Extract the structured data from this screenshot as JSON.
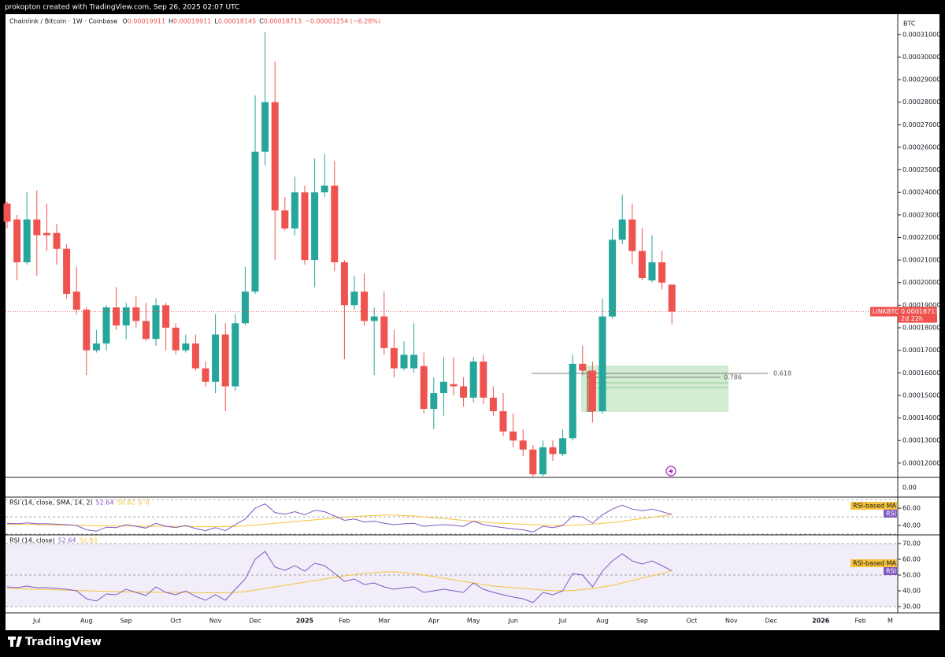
{
  "header": {
    "credit": "prokopton created with TradingView.com, Sep 26, 2025 02:07 UTC"
  },
  "footer": {
    "brand": "TradingView"
  },
  "chart_data": {
    "type": "candlestick",
    "title": "Chainlink / Bitcoin · 1W · Coinbase",
    "ohlc_letters": [
      "O",
      "H",
      "L",
      "C"
    ],
    "change": "−0.00001254 (−6.28%)",
    "y_unit": "BTC",
    "up_color": "#26a69a",
    "down_color": "#ef5350",
    "categories": [
      null,
      null,
      null,
      "Jul",
      null,
      null,
      null,
      null,
      "Aug",
      null,
      null,
      null,
      "Sep",
      null,
      null,
      null,
      null,
      "Oct",
      null,
      null,
      null,
      "Nov",
      null,
      null,
      null,
      "Dec",
      null,
      null,
      null,
      null,
      "2025",
      null,
      null,
      null,
      "Feb",
      null,
      null,
      null,
      "Mar",
      null,
      null,
      null,
      null,
      "Apr",
      null,
      null,
      null,
      "May",
      null,
      null,
      null,
      "Jun",
      null,
      null,
      null,
      null,
      "Jul",
      null,
      null,
      null,
      "Aug",
      null,
      null,
      null,
      "Sep",
      null,
      null,
      null,
      null,
      "Oct",
      null,
      null,
      null,
      "Nov",
      null,
      null,
      null,
      "Dec",
      null,
      null,
      null,
      null,
      "2026",
      null,
      null,
      null,
      "Feb",
      null,
      null,
      "M"
    ],
    "open": [
      0.000235,
      0.000228,
      0.000209,
      0.000228,
      0.000222,
      0.000222,
      0.000215,
      0.000196,
      0.000188,
      0.00017,
      0.000173,
      0.000189,
      0.000181,
      0.000189,
      0.000183,
      0.000175,
      0.00019,
      0.00018,
      0.00017,
      0.000173,
      0.000162,
      0.000156,
      0.000177,
      0.000154,
      0.000182,
      0.000196,
      0.000258,
      0.00028,
      0.000232,
      0.000224,
      0.00024,
      0.00021,
      0.00024,
      0.000243,
      0.000209,
      0.00019,
      0.000196,
      0.000183,
      0.000185,
      0.000171,
      0.000162,
      0.000162,
      0.000163,
      0.000144,
      0.000151,
      0.000155,
      0.000154,
      0.000149,
      0.000165,
      0.000149,
      0.000143,
      0.000134,
      0.00013,
      0.000126,
      0.000115,
      0.000127,
      0.000124,
      0.000131,
      0.000164,
      0.000161,
      0.000143,
      0.000185,
      0.000219,
      0.000228,
      0.000214,
      0.000201,
      0.000209,
      0.00019911,
      null,
      null,
      null,
      null,
      null,
      null,
      null,
      null,
      null,
      null,
      null,
      null,
      null,
      null,
      null,
      null,
      null,
      null,
      null,
      null,
      null,
      null
    ],
    "high": [
      0.000236,
      0.00023,
      0.00024,
      0.000241,
      0.000235,
      0.000226,
      0.000217,
      0.000207,
      0.000189,
      0.000179,
      0.00019,
      0.000198,
      0.000191,
      0.000194,
      0.000191,
      0.000193,
      0.000191,
      0.000182,
      0.000177,
      0.000177,
      0.000165,
      0.000186,
      0.000182,
      0.000186,
      0.000207,
      0.000283,
      0.000311,
      0.000298,
      0.000238,
      0.000247,
      0.000243,
      0.000255,
      0.000257,
      0.000254,
      0.00021,
      0.000203,
      0.000204,
      0.000189,
      0.000196,
      0.000179,
      0.000174,
      0.000182,
      0.000169,
      0.000158,
      0.000167,
      0.000167,
      0.000158,
      0.000167,
      0.000168,
      0.000154,
      0.000151,
      0.000142,
      0.000135,
      0.000128,
      0.00013,
      0.00013,
      0.000135,
      0.000168,
      0.000172,
      0.000165,
      0.000193,
      0.000224,
      0.000239,
      0.000235,
      0.000224,
      0.000221,
      0.000214,
      0.00019911,
      null,
      null,
      null,
      null,
      null,
      null,
      null,
      null,
      null,
      null,
      null,
      null,
      null,
      null,
      null,
      null,
      null,
      null,
      null,
      null,
      null,
      null
    ],
    "low": [
      0.000224,
      0.000201,
      0.000208,
      0.000203,
      0.000214,
      0.000208,
      0.000193,
      0.000186,
      0.000159,
      0.000169,
      0.00017,
      0.000179,
      0.000175,
      0.00018,
      0.000174,
      0.000172,
      0.00017,
      0.000168,
      0.000169,
      0.000161,
      0.000154,
      0.000151,
      0.000143,
      0.000152,
      0.000181,
      0.000195,
      0.000252,
      0.00021,
      0.000223,
      0.000221,
      0.000208,
      0.000198,
      0.000238,
      0.000205,
      0.000166,
      0.000188,
      0.000181,
      0.000159,
      0.000168,
      0.000158,
      0.000161,
      0.00016,
      0.000142,
      0.000135,
      0.000141,
      0.00015,
      0.000145,
      0.000147,
      0.000146,
      0.000141,
      0.000132,
      0.000127,
      0.000123,
      0.000114,
      0.000114,
      0.000121,
      0.000123,
      0.00013,
      0.000159,
      0.000138,
      0.000142,
      0.000184,
      0.000217,
      0.000208,
      0.000201,
      0.0002,
      0.000197,
      0.00018145,
      null,
      null,
      null,
      null,
      null,
      null,
      null,
      null,
      null,
      null,
      null,
      null,
      null,
      null,
      null,
      null,
      null,
      null,
      null,
      null,
      null,
      null
    ],
    "close": [
      0.000227,
      0.000209,
      0.000228,
      0.000221,
      0.000221,
      0.000215,
      0.000195,
      0.000188,
      0.00017,
      0.000173,
      0.000189,
      0.000181,
      0.000189,
      0.000183,
      0.000175,
      0.00019,
      0.00018,
      0.00017,
      0.000173,
      0.000162,
      0.000156,
      0.000177,
      0.000154,
      0.000182,
      0.000196,
      0.000258,
      0.00028,
      0.000232,
      0.000224,
      0.00024,
      0.00021,
      0.00024,
      0.000243,
      0.000209,
      0.00019,
      0.000196,
      0.000183,
      0.000185,
      0.000171,
      0.000162,
      0.000168,
      0.000168,
      0.000144,
      0.000151,
      0.000156,
      0.000154,
      0.000149,
      0.000165,
      0.000149,
      0.000143,
      0.000134,
      0.00013,
      0.000126,
      0.000115,
      0.000127,
      0.000124,
      0.000131,
      0.000164,
      0.000161,
      0.000143,
      0.000185,
      0.000219,
      0.000228,
      0.000214,
      0.000202,
      0.000209,
      0.0002,
      0.00018713,
      null,
      null,
      null,
      null,
      null,
      null,
      null,
      null,
      null,
      null,
      null,
      null,
      null,
      null,
      null,
      null,
      null,
      null,
      null,
      null,
      null,
      null
    ],
    "ylim": [
      0.000114,
      0.000319
    ],
    "yticks": [
      {
        "value": 0.00031,
        "label": "0.00031000"
      },
      {
        "value": 0.0003,
        "label": "0.00030000"
      },
      {
        "value": 0.00029,
        "label": "0.00029000"
      },
      {
        "value": 0.00028,
        "label": "0.00028000"
      },
      {
        "value": 0.00027,
        "label": "0.00027000"
      },
      {
        "value": 0.00026,
        "label": "0.00026000"
      },
      {
        "value": 0.00025,
        "label": "0.00025000"
      },
      {
        "value": 0.00024,
        "label": "0.00024000"
      },
      {
        "value": 0.00023,
        "label": "0.00023000"
      },
      {
        "value": 0.00022,
        "label": "0.00022000"
      },
      {
        "value": 0.00021,
        "label": "0.00021000"
      },
      {
        "value": 0.0002,
        "label": "0.00020000"
      },
      {
        "value": 0.00019,
        "label": "0.00019000"
      },
      {
        "value": 0.00018,
        "label": "0.00018000"
      },
      {
        "value": 0.00017,
        "label": "0.00017000"
      },
      {
        "value": 0.00016,
        "label": "0.00016000"
      },
      {
        "value": 0.00015,
        "label": "0.00015000"
      },
      {
        "value": 0.00014,
        "label": "0.00014000"
      },
      {
        "value": 0.00013,
        "label": "0.00013000"
      },
      {
        "value": 0.00012,
        "label": "0.00012000"
      }
    ],
    "price_tag": {
      "symbol": "LINKBTC",
      "countdown": "2d 22h"
    },
    "fib_labels": [
      "0.618",
      "0.786"
    ],
    "empty_pane": {
      "yticks": [
        {
          "value": 0,
          "label": "0.00"
        }
      ]
    },
    "rsi": {
      "color": "#7e57c2",
      "ma_color": "#f5c33b",
      "values": [
        42.5,
        42,
        43,
        42,
        42,
        41.5,
        41,
        40,
        35,
        33.5,
        38,
        37.5,
        41,
        39,
        37,
        42.5,
        39,
        37.5,
        40,
        36.5,
        34,
        37.5,
        34,
        41,
        47.5,
        60,
        65,
        55,
        53,
        56,
        52.5,
        57.5,
        56,
        51,
        46,
        47.5,
        44,
        45,
        42.5,
        41,
        42,
        42.5,
        39,
        40,
        41,
        40,
        39,
        45,
        41,
        39,
        37.5,
        36,
        35,
        32.5,
        39,
        37.5,
        40,
        51,
        50,
        42.5,
        52.5,
        59,
        63.5,
        59,
        57,
        59,
        56,
        52.64,
        null,
        null,
        null,
        null,
        null,
        null,
        null,
        null,
        null,
        null,
        null,
        null,
        null,
        null,
        null,
        null,
        null,
        null,
        null,
        null,
        null,
        null
      ],
      "ma": [
        41.5,
        41.3,
        41.1,
        41,
        40.8,
        40.6,
        40.4,
        40.2,
        40,
        39.8,
        39.6,
        39.5,
        39.4,
        39.3,
        39.2,
        39.1,
        39,
        39,
        39,
        38.9,
        38.8,
        38.8,
        38.8,
        39,
        39.5,
        40.5,
        41.5,
        42.5,
        43.5,
        44.5,
        45.5,
        46.5,
        47.5,
        48.5,
        49.5,
        50.3,
        51,
        51.5,
        52,
        52,
        51.5,
        51,
        50,
        49,
        48,
        47,
        46,
        45,
        44,
        43,
        42.5,
        42,
        41.5,
        41,
        40.5,
        40,
        40,
        40.2,
        40.8,
        41.5,
        42.5,
        43.5,
        45,
        46.5,
        48,
        49.5,
        51,
        52.83,
        null,
        null,
        null,
        null,
        null,
        null,
        null,
        null,
        null,
        null,
        null,
        null,
        null,
        null,
        null,
        null,
        null,
        null,
        null,
        null,
        null,
        null
      ]
    },
    "rsi_panes": [
      {
        "legend": [
          "RSI (14, close, SMA, 14, 2)",
          "52.64",
          "50.82",
          "0",
          "0"
        ],
        "tags": [
          "RSI-based MA",
          "RSI"
        ],
        "ylim": [
          30,
          72
        ],
        "yticks": [
          {
            "value": 60,
            "label": "60.00"
          },
          {
            "value": 40,
            "label": "40.00"
          }
        ],
        "bands": [
          70,
          50,
          30
        ],
        "band_fill": false
      },
      {
        "legend": [
          "RSI (14, close)",
          "52.64",
          "52.83"
        ],
        "tags": [
          "RSI-based MA",
          "RSI"
        ],
        "ylim": [
          26.5,
          75
        ],
        "yticks": [
          {
            "value": 70,
            "label": "70.00"
          },
          {
            "value": 60,
            "label": "60.00"
          },
          {
            "value": 50,
            "label": "50.00"
          },
          {
            "value": 40,
            "label": "40.00"
          },
          {
            "value": 30,
            "label": "30.00"
          }
        ],
        "bands": [
          70,
          50,
          30
        ],
        "band_fill": true
      }
    ]
  }
}
